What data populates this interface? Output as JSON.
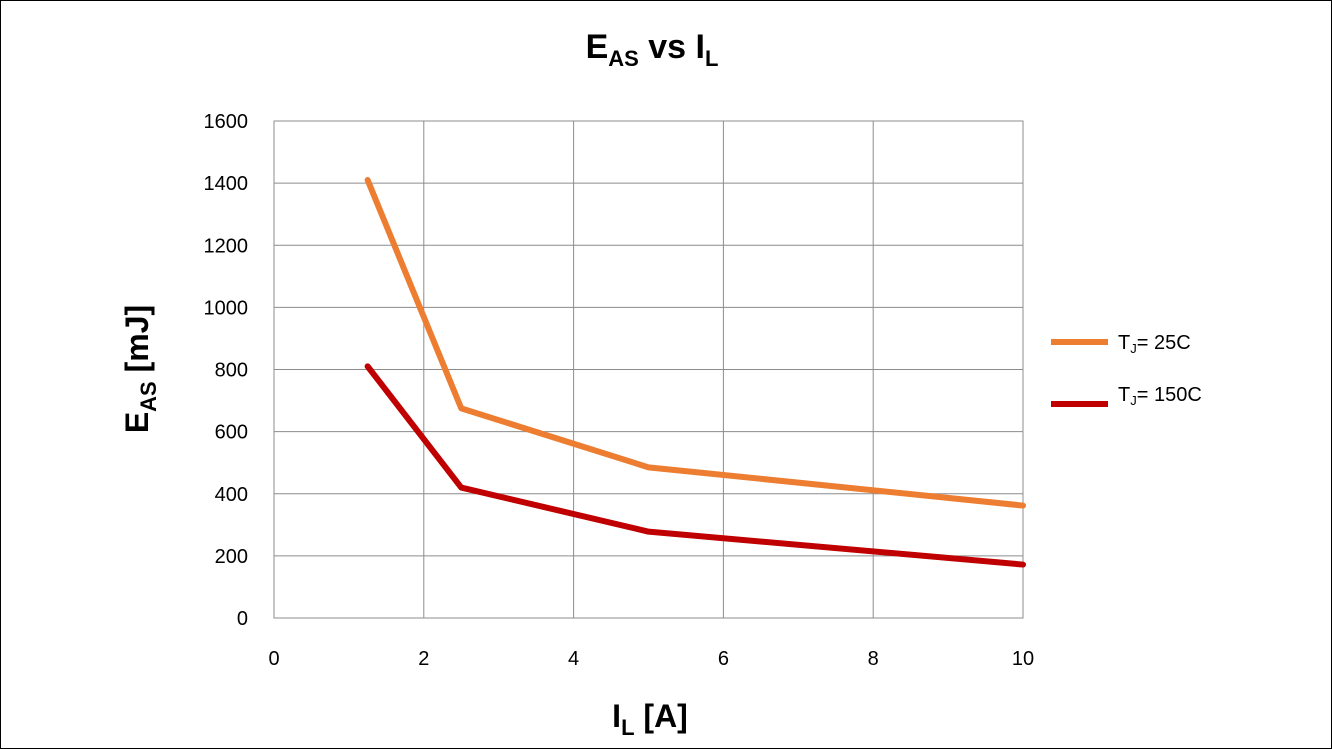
{
  "chart_data": {
    "type": "line",
    "title": {
      "main": "E",
      "sub": "AS",
      "middle": " vs I",
      "sub2": "L"
    },
    "xlabel": {
      "main": "I",
      "sub": "L",
      "rest": " [A]"
    },
    "ylabel": {
      "main": "E",
      "sub": "AS",
      "rest": " [mJ]"
    },
    "xlim": [
      0,
      10
    ],
    "ylim": [
      0,
      1600
    ],
    "x_ticks": [
      "0",
      "2",
      "4",
      "6",
      "8",
      "10"
    ],
    "y_ticks": [
      "0",
      "200",
      "400",
      "600",
      "800",
      "1000",
      "1200",
      "1400",
      "1600"
    ],
    "grid": true,
    "legend_position": "right",
    "series": [
      {
        "name": {
          "main": "T",
          "sub": "J",
          "rest": "= 25C"
        },
        "color": "#ED7D31",
        "x": [
          1.25,
          2.5,
          5,
          10
        ],
        "y": [
          1410,
          675,
          485,
          362
        ]
      },
      {
        "name": {
          "main": "T",
          "sub": "J",
          "rest": "= 150C"
        },
        "color": "#C00000",
        "x": [
          1.25,
          2.5,
          5,
          10
        ],
        "y": [
          810,
          420,
          278,
          172
        ]
      }
    ]
  }
}
